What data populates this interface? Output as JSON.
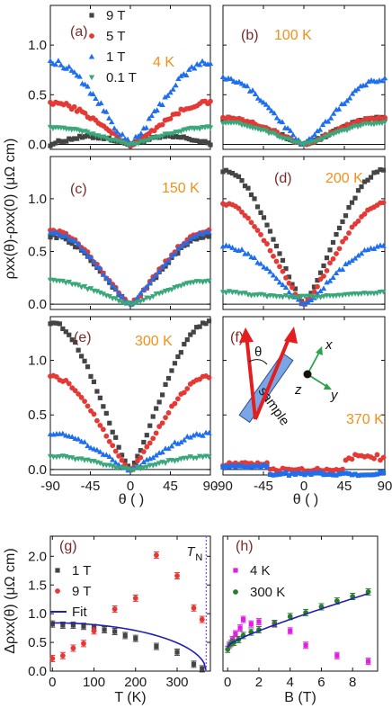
{
  "colors": {
    "T9": "#444444",
    "T5": "#e53935",
    "T1": "#1e6ff0",
    "T01": "#3aa77a",
    "fit": "#1f1fb4",
    "magenta": "#e020e0",
    "green300": "#2c7a2c",
    "panel_tag": "#7a2a2a",
    "temp_tag": "#f39019",
    "TN_line": "#9a5bd6"
  },
  "shared": {
    "y_label": "ρxx(θ)-ρxx(0) (μΩ cm)",
    "x_label": "θ ( )",
    "y_label_bottom": "Δρxx(θ) (μΩ cm)"
  },
  "chart_data": [
    {
      "id": "a",
      "type": "scatter",
      "tag": "(a)",
      "temp": "4 K",
      "xlim": [
        -90,
        90
      ],
      "ylim": [
        -0.05,
        1.4
      ],
      "yticks": [
        0.0,
        0.5,
        1.0
      ],
      "ytick_labels": [
        "0.0",
        "0.5",
        "1.0"
      ],
      "legend": [
        {
          "label": "9 T",
          "color_key": "T9",
          "marker": "square"
        },
        {
          "label": "5 T",
          "color_key": "T5",
          "marker": "circle"
        },
        {
          "label": "1 T",
          "color_key": "T1",
          "marker": "triangle-up"
        },
        {
          "label": "0.1 T",
          "color_key": "T01",
          "marker": "triangle-down"
        }
      ],
      "series": [
        {
          "name": "9 T",
          "color_key": "T9",
          "marker": "square",
          "amp": 0.08,
          "shape": "hump",
          "noise": 0.015
        },
        {
          "name": "5 T",
          "color_key": "T5",
          "marker": "circle",
          "amp": 0.42,
          "shape": "v",
          "noise": 0.02
        },
        {
          "name": "1 T",
          "color_key": "T1",
          "marker": "triangle-up",
          "amp": 0.83,
          "shape": "v",
          "noise": 0.03
        },
        {
          "name": "0.1 T",
          "color_key": "T01",
          "marker": "triangle-down",
          "amp": 0.17,
          "shape": "v",
          "noise": 0.01
        }
      ]
    },
    {
      "id": "b",
      "type": "scatter",
      "tag": "(b)",
      "temp": "100 K",
      "xlim": [
        -90,
        90
      ],
      "ylim": [
        -0.05,
        1.4
      ],
      "series": [
        {
          "name": "9 T",
          "color_key": "T9",
          "marker": "square",
          "amp": 0.27,
          "shape": "v",
          "noise": 0.015
        },
        {
          "name": "5 T",
          "color_key": "T5",
          "marker": "circle",
          "amp": 0.27,
          "shape": "v",
          "noise": 0.015
        },
        {
          "name": "1 T",
          "color_key": "T1",
          "marker": "triangle-up",
          "amp": 0.66,
          "shape": "v",
          "noise": 0.02
        },
        {
          "name": "0.1 T",
          "color_key": "T01",
          "marker": "triangle-down",
          "amp": 0.22,
          "shape": "v",
          "noise": 0.01
        }
      ]
    },
    {
      "id": "c",
      "type": "scatter",
      "tag": "(c)",
      "temp": "150 K",
      "xlim": [
        -90,
        90
      ],
      "ylim": [
        -0.05,
        1.4
      ],
      "yticks": [
        0.0,
        0.5,
        1.0
      ],
      "ytick_labels": [
        "0.0",
        "0.5",
        "1.0"
      ],
      "series": [
        {
          "name": "9 T",
          "color_key": "T9",
          "marker": "square",
          "amp": 0.65,
          "shape": "v",
          "noise": 0.015
        },
        {
          "name": "5 T",
          "color_key": "T5",
          "marker": "circle",
          "amp": 0.7,
          "shape": "v",
          "noise": 0.015
        },
        {
          "name": "1 T",
          "color_key": "T1",
          "marker": "triangle-up",
          "amp": 0.68,
          "shape": "v",
          "noise": 0.015
        },
        {
          "name": "0.1 T",
          "color_key": "T01",
          "marker": "triangle-down",
          "amp": 0.22,
          "shape": "v",
          "noise": 0.01
        }
      ]
    },
    {
      "id": "d",
      "type": "scatter",
      "tag": "(d)",
      "temp": "200 K",
      "xlim": [
        -90,
        90
      ],
      "ylim": [
        -0.05,
        1.4
      ],
      "series": [
        {
          "name": "9 T",
          "color_key": "T9",
          "marker": "square",
          "amp": 1.27,
          "shape": "v",
          "noise": 0.015
        },
        {
          "name": "5 T",
          "color_key": "T5",
          "marker": "circle",
          "amp": 0.95,
          "shape": "v",
          "noise": 0.015
        },
        {
          "name": "1 T",
          "color_key": "T1",
          "marker": "triangle-up",
          "amp": 0.55,
          "shape": "v",
          "noise": 0.015
        },
        {
          "name": "0.1 T",
          "color_key": "T01",
          "marker": "triangle-down",
          "amp": 0.12,
          "shape": "flat",
          "noise": 0.01
        }
      ]
    },
    {
      "id": "e",
      "type": "scatter",
      "tag": "(e)",
      "temp": "300 K",
      "xlim": [
        -90,
        90
      ],
      "ylim": [
        -0.05,
        1.4
      ],
      "yticks": [
        0.0,
        0.5,
        1.0
      ],
      "ytick_labels": [
        "0.0",
        "0.5",
        "1.0"
      ],
      "xticks": [
        -90,
        -45,
        0,
        45,
        90
      ],
      "xtick_labels": [
        "-90",
        "-45",
        "0",
        "45",
        "90"
      ],
      "series": [
        {
          "name": "9 T",
          "color_key": "T9",
          "marker": "square",
          "amp": 1.35,
          "shape": "v",
          "noise": 0.015
        },
        {
          "name": "5 T",
          "color_key": "T5",
          "marker": "circle",
          "amp": 0.85,
          "shape": "v",
          "noise": 0.015
        },
        {
          "name": "1 T",
          "color_key": "T1",
          "marker": "triangle-up",
          "amp": 0.33,
          "shape": "v",
          "noise": 0.015
        },
        {
          "name": "0.1 T",
          "color_key": "T01",
          "marker": "triangle-down",
          "amp": 0.12,
          "shape": "v",
          "noise": 0.01
        }
      ]
    },
    {
      "id": "f",
      "type": "scatter",
      "tag": "(f)",
      "temp": "370 K",
      "xlim": [
        -90,
        90
      ],
      "ylim": [
        -0.05,
        1.4
      ],
      "xticks": [
        -90,
        -45,
        0,
        45,
        90
      ],
      "xtick_labels": [
        "-90",
        "-45",
        "0",
        "45",
        "90"
      ],
      "inset": {
        "sample_label": "sample",
        "theta_label": "θ",
        "x_label": "x",
        "y_label": "y",
        "z_label": "z"
      },
      "series": [
        {
          "name": "9 T",
          "color_key": "T5",
          "marker": "circle",
          "amp": 0.0,
          "shape": "red370",
          "noise": 0.015
        },
        {
          "name": "1 T",
          "color_key": "T1",
          "marker": "square",
          "amp": 0.0,
          "shape": "blue370",
          "noise": 0.012
        }
      ]
    },
    {
      "id": "g",
      "type": "scatter",
      "tag": "(g)",
      "xlim": [
        -5,
        380
      ],
      "ylim": [
        0.0,
        2.35
      ],
      "xticks": [
        0,
        100,
        200,
        300
      ],
      "xtick_labels": [
        "0",
        "100",
        "200",
        "300"
      ],
      "yticks": [
        0.0,
        0.5,
        1.0,
        1.5,
        2.0
      ],
      "ytick_labels": [
        "0.0",
        "0.5",
        "1.0",
        "1.5",
        "2.0"
      ],
      "xlabel": "T (K)",
      "TN_label": "T",
      "TN_sub": "N",
      "TN_x": 370,
      "legend": [
        {
          "label": "1 T",
          "color_key": "T9",
          "marker": "square"
        },
        {
          "label": "9 T",
          "color_key": "T5",
          "marker": "circle"
        },
        {
          "label": "Fit",
          "color_key": "fit",
          "marker": "line"
        }
      ],
      "series": [
        {
          "name": "1 T",
          "color_key": "T9",
          "marker": "square",
          "x": [
            0,
            25,
            50,
            75,
            100,
            125,
            150,
            175,
            200,
            250,
            300,
            340,
            360
          ],
          "y": [
            0.82,
            0.8,
            0.8,
            0.78,
            0.76,
            0.72,
            0.69,
            0.62,
            0.57,
            0.43,
            0.33,
            0.12,
            0.04
          ]
        },
        {
          "name": "9 T",
          "color_key": "T5",
          "marker": "circle",
          "x": [
            0,
            25,
            50,
            75,
            100,
            150,
            200,
            250,
            300,
            340,
            360
          ],
          "y": [
            0.22,
            0.27,
            0.4,
            0.48,
            0.7,
            1.08,
            1.27,
            2.02,
            1.66,
            1.1,
            0.9
          ]
        },
        {
          "name": "Fit",
          "color_key": "fit",
          "marker": "line",
          "fit_kind": "tn",
          "A": 0.84,
          "TN": 370
        }
      ]
    },
    {
      "id": "h",
      "type": "scatter",
      "tag": "(h)",
      "xlim": [
        -0.3,
        9.6
      ],
      "ylim": [
        0.0,
        2.35
      ],
      "xticks": [
        0,
        2,
        4,
        6,
        8
      ],
      "xtick_labels": [
        "0",
        "2",
        "4",
        "6",
        "8"
      ],
      "xlabel": "B (T)",
      "legend": [
        {
          "label": "4 K",
          "color_key": "magenta",
          "marker": "square"
        },
        {
          "label": "300 K",
          "color_key": "green300",
          "marker": "circle"
        }
      ],
      "series": [
        {
          "name": "4 K",
          "color_key": "magenta",
          "marker": "square",
          "x": [
            0.1,
            0.3,
            0.5,
            0.8,
            1.0,
            1.5,
            2.0,
            3.0,
            4.0,
            5.0,
            7.0,
            9.0
          ],
          "y": [
            0.45,
            0.55,
            0.65,
            0.75,
            0.9,
            0.82,
            0.86,
            0.82,
            0.7,
            0.45,
            0.27,
            0.17
          ]
        },
        {
          "name": "300 K",
          "color_key": "green300",
          "marker": "circle",
          "x": [
            0,
            0.2,
            0.4,
            0.7,
            1.0,
            1.5,
            2.0,
            3.0,
            4.0,
            5.0,
            6.0,
            7.0,
            8.0,
            9.0
          ],
          "y": [
            0.38,
            0.48,
            0.5,
            0.55,
            0.62,
            0.68,
            0.72,
            0.83,
            0.95,
            1.02,
            1.12,
            1.22,
            1.3,
            1.38
          ]
        },
        {
          "name": "Fit",
          "color_key": "fit",
          "marker": "line",
          "fit_kind": "sqrtlin",
          "c0": 0.42,
          "c1": 0.1,
          "c2": 0.07
        }
      ]
    }
  ]
}
